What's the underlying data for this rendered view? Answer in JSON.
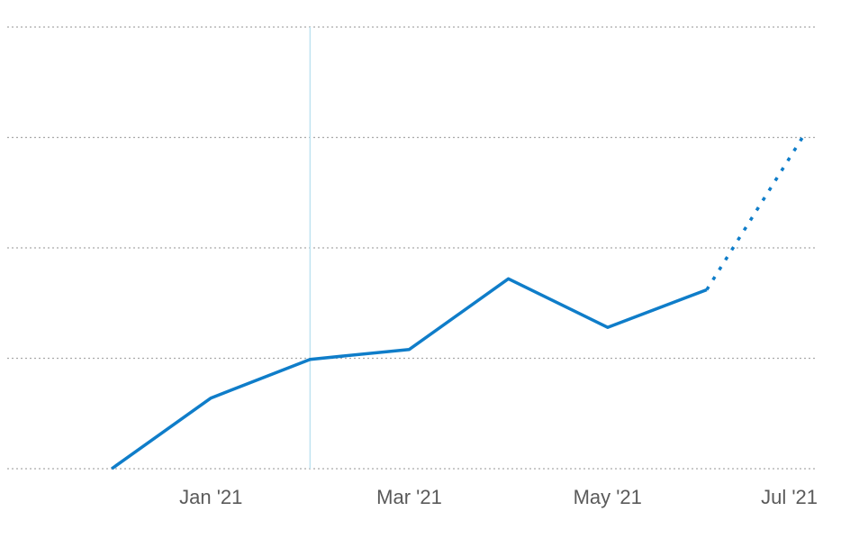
{
  "chart_data": {
    "type": "line",
    "title": "",
    "xlabel": "",
    "ylabel": "",
    "x_ticks": [
      {
        "label": "Jan '21",
        "x": "2021-01-01"
      },
      {
        "label": "Mar '21",
        "x": "2021-03-01"
      },
      {
        "label": "May '21",
        "x": "2021-05-01"
      },
      {
        "label": "Jul '21",
        "x": "2021-07-01"
      }
    ],
    "xlim": [
      "2020-11-01",
      "2021-07-01"
    ],
    "ylim": [
      0,
      4
    ],
    "y_gridlines": [
      0,
      1,
      2,
      3,
      4
    ],
    "grid": true,
    "legend": "none",
    "highlight_x": "2021-02-01",
    "series": [
      {
        "style": "solid",
        "color": "#0f7dc9",
        "points": [
          {
            "x": "2020-12-01",
            "y": 0.0
          },
          {
            "x": "2021-01-01",
            "y": 0.64
          },
          {
            "x": "2021-02-01",
            "y": 0.99
          },
          {
            "x": "2021-03-01",
            "y": 1.08
          },
          {
            "x": "2021-04-01",
            "y": 1.72
          },
          {
            "x": "2021-05-01",
            "y": 1.28
          },
          {
            "x": "2021-06-01",
            "y": 1.62
          }
        ]
      },
      {
        "style": "dotted",
        "color": "#0f7dc9",
        "points": [
          {
            "x": "2021-06-01",
            "y": 1.62
          },
          {
            "x": "2021-07-01",
            "y": 3.05
          }
        ]
      }
    ]
  }
}
